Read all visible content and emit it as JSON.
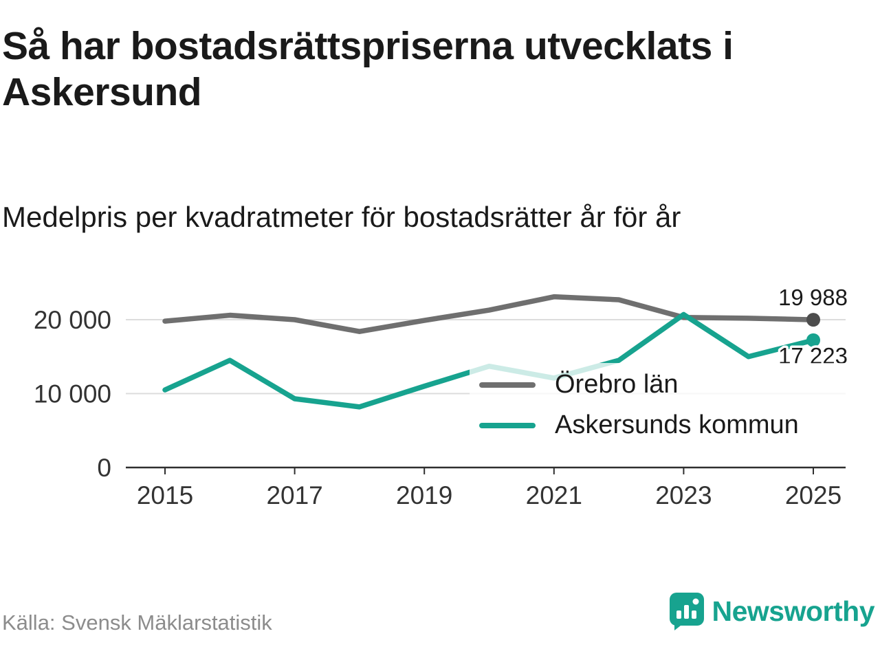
{
  "chart_data": {
    "type": "line",
    "title": "Så har bostadsrättspriserna utvecklats i Askersund",
    "subtitle": "Medelpris per kvadratmeter för bostadsrätter år för år",
    "x": [
      2015,
      2016,
      2017,
      2018,
      2019,
      2020,
      2021,
      2022,
      2023,
      2024,
      2025
    ],
    "series": [
      {
        "name": "Örebro län",
        "color": "#6F6F6F",
        "marker_color": "#4D4D4D",
        "values": [
          19800,
          20600,
          20000,
          18400,
          19900,
          21300,
          23100,
          22700,
          20300,
          20200,
          19988
        ],
        "end_label": "19 988"
      },
      {
        "name": "Askersunds kommun",
        "color": "#17A38F",
        "marker_color": "#17A38F",
        "values": [
          10500,
          14500,
          9300,
          8200,
          11000,
          13700,
          12100,
          14500,
          20700,
          15000,
          17223
        ],
        "end_label": "17 223"
      }
    ],
    "yticks": [
      {
        "value": 0,
        "label": "0"
      },
      {
        "value": 10000,
        "label": "10 000"
      },
      {
        "value": 20000,
        "label": "20 000"
      }
    ],
    "xticks": [
      2015,
      2017,
      2019,
      2021,
      2023,
      2025
    ],
    "ylim": [
      0,
      24500
    ],
    "grid": "horizontal",
    "legend_position": "inside-right"
  },
  "footer": {
    "source": "Källa: Svensk Mäklarstatistik"
  },
  "brand": {
    "name": "Newsworthy",
    "color": "#17A38F",
    "icon": "newsworthy-bar-chart-logo"
  }
}
